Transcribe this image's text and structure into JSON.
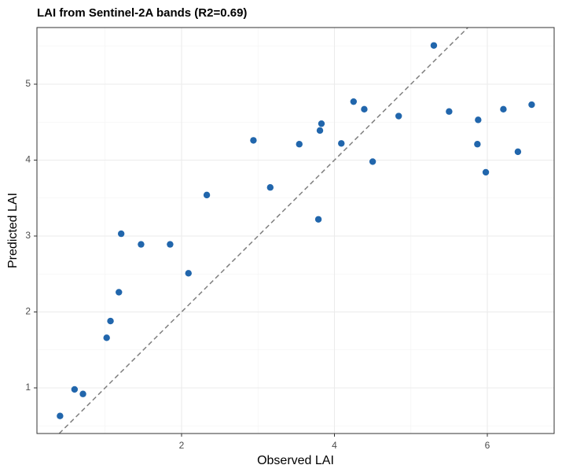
{
  "chart_data": {
    "type": "scatter",
    "title": "LAI from Sentinel-2A bands (R2=0.69)",
    "x_label": "Observed LAI",
    "y_label": "Predicted LAI",
    "x": [
      0.41,
      0.6,
      0.71,
      1.02,
      1.07,
      1.18,
      1.21,
      1.47,
      1.85,
      2.09,
      2.33,
      2.94,
      3.16,
      3.54,
      3.79,
      3.81,
      3.83,
      4.09,
      4.25,
      4.39,
      4.5,
      4.84,
      5.3,
      5.5,
      5.88,
      5.87,
      5.98,
      6.21,
      6.4,
      6.58
    ],
    "values": [
      0.63,
      0.98,
      0.92,
      1.66,
      1.88,
      2.26,
      3.03,
      2.89,
      2.89,
      2.51,
      3.54,
      4.26,
      3.64,
      4.21,
      3.22,
      4.39,
      4.48,
      4.22,
      4.77,
      4.67,
      3.98,
      4.58,
      5.51,
      4.64,
      4.53,
      4.21,
      3.84,
      4.67,
      4.11,
      4.73
    ],
    "color": "#2166ac",
    "xlim": [
      0.108,
      6.874
    ],
    "ylim": [
      0.399,
      5.746
    ],
    "xticks": [
      2,
      4,
      6
    ],
    "yticks": [
      1,
      2,
      3,
      4,
      5
    ],
    "grid": true,
    "identity_line": true
  }
}
